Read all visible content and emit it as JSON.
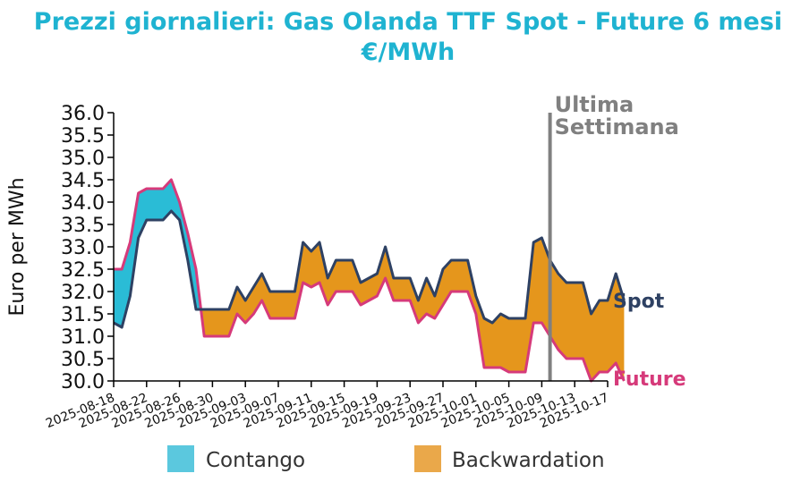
{
  "chart_data": {
    "type": "area",
    "title_line1": "Prezzi giornalieri: Gas Olanda TTF Spot - Future 6 mesi",
    "title_line2": "€/MWh",
    "ylabel": "Euro per MWh",
    "ylim": [
      30.0,
      36.0
    ],
    "y_ticks": [
      "30.0",
      "30.5",
      "31.0",
      "31.5",
      "32.0",
      "32.5",
      "33.0",
      "33.5",
      "34.0",
      "34.5",
      "35.0",
      "35.5",
      "36.0"
    ],
    "x_ticks": [
      "2025-08-18",
      "2025-08-22",
      "2025-08-26",
      "2025-08-30",
      "2025-09-03",
      "2025-09-07",
      "2025-09-11",
      "2025-09-15",
      "2025-09-19",
      "2025-09-23",
      "2025-09-27",
      "2025-10-01",
      "2025-10-05",
      "2025-10-09",
      "2025-10-13",
      "2025-10-17"
    ],
    "x_start": "2025-08-18",
    "x_end": "2025-10-17",
    "last_week_date": "2025-10-10",
    "last_week_label": [
      "Ultima",
      "Settimana"
    ],
    "series": [
      {
        "name": "Spot",
        "color": "#2e4163",
        "points": [
          [
            "2025-08-18",
            31.3
          ],
          [
            "2025-08-19",
            31.2
          ],
          [
            "2025-08-20",
            31.9
          ],
          [
            "2025-08-21",
            33.2
          ],
          [
            "2025-08-22",
            33.6
          ],
          [
            "2025-08-23",
            33.6
          ],
          [
            "2025-08-24",
            33.6
          ],
          [
            "2025-08-25",
            33.8
          ],
          [
            "2025-08-26",
            33.6
          ],
          [
            "2025-08-27",
            32.7
          ],
          [
            "2025-08-28",
            31.6
          ],
          [
            "2025-08-29",
            31.6
          ],
          [
            "2025-08-30",
            31.6
          ],
          [
            "2025-08-31",
            31.6
          ],
          [
            "2025-09-01",
            31.6
          ],
          [
            "2025-09-02",
            32.1
          ],
          [
            "2025-09-03",
            31.8
          ],
          [
            "2025-09-04",
            32.1
          ],
          [
            "2025-09-05",
            32.4
          ],
          [
            "2025-09-06",
            32.0
          ],
          [
            "2025-09-07",
            32.0
          ],
          [
            "2025-09-08",
            32.0
          ],
          [
            "2025-09-09",
            32.0
          ],
          [
            "2025-09-10",
            33.1
          ],
          [
            "2025-09-11",
            32.9
          ],
          [
            "2025-09-12",
            33.1
          ],
          [
            "2025-09-13",
            32.3
          ],
          [
            "2025-09-14",
            32.7
          ],
          [
            "2025-09-15",
            32.7
          ],
          [
            "2025-09-16",
            32.7
          ],
          [
            "2025-09-17",
            32.2
          ],
          [
            "2025-09-18",
            32.3
          ],
          [
            "2025-09-19",
            32.4
          ],
          [
            "2025-09-20",
            33.0
          ],
          [
            "2025-09-21",
            32.3
          ],
          [
            "2025-09-22",
            32.3
          ],
          [
            "2025-09-23",
            32.3
          ],
          [
            "2025-09-24",
            31.8
          ],
          [
            "2025-09-25",
            32.3
          ],
          [
            "2025-09-26",
            31.9
          ],
          [
            "2025-09-27",
            32.5
          ],
          [
            "2025-09-28",
            32.7
          ],
          [
            "2025-09-29",
            32.7
          ],
          [
            "2025-09-30",
            32.7
          ],
          [
            "2025-10-01",
            31.9
          ],
          [
            "2025-10-02",
            31.4
          ],
          [
            "2025-10-03",
            31.3
          ],
          [
            "2025-10-04",
            31.5
          ],
          [
            "2025-10-05",
            31.4
          ],
          [
            "2025-10-06",
            31.4
          ],
          [
            "2025-10-07",
            31.4
          ],
          [
            "2025-10-08",
            33.1
          ],
          [
            "2025-10-09",
            33.2
          ],
          [
            "2025-10-10",
            32.7
          ],
          [
            "2025-10-11",
            32.4
          ],
          [
            "2025-10-12",
            32.2
          ],
          [
            "2025-10-13",
            32.2
          ],
          [
            "2025-10-14",
            32.2
          ],
          [
            "2025-10-15",
            31.5
          ],
          [
            "2025-10-16",
            31.8
          ],
          [
            "2025-10-17",
            31.8
          ],
          [
            "2025-10-18",
            32.4
          ],
          [
            "2025-10-19",
            31.8
          ]
        ]
      },
      {
        "name": "Future",
        "color": "#d63a7a",
        "points": [
          [
            "2025-08-18",
            32.5
          ],
          [
            "2025-08-19",
            32.5
          ],
          [
            "2025-08-20",
            33.1
          ],
          [
            "2025-08-21",
            34.2
          ],
          [
            "2025-08-22",
            34.3
          ],
          [
            "2025-08-23",
            34.3
          ],
          [
            "2025-08-24",
            34.3
          ],
          [
            "2025-08-25",
            34.5
          ],
          [
            "2025-08-26",
            34.0
          ],
          [
            "2025-08-27",
            33.3
          ],
          [
            "2025-08-28",
            32.5
          ],
          [
            "2025-08-29",
            31.0
          ],
          [
            "2025-08-30",
            31.0
          ],
          [
            "2025-08-31",
            31.0
          ],
          [
            "2025-09-01",
            31.0
          ],
          [
            "2025-09-02",
            31.5
          ],
          [
            "2025-09-03",
            31.3
          ],
          [
            "2025-09-04",
            31.5
          ],
          [
            "2025-09-05",
            31.8
          ],
          [
            "2025-09-06",
            31.4
          ],
          [
            "2025-09-07",
            31.4
          ],
          [
            "2025-09-08",
            31.4
          ],
          [
            "2025-09-09",
            31.4
          ],
          [
            "2025-09-10",
            32.2
          ],
          [
            "2025-09-11",
            32.1
          ],
          [
            "2025-09-12",
            32.2
          ],
          [
            "2025-09-13",
            31.7
          ],
          [
            "2025-09-14",
            32.0
          ],
          [
            "2025-09-15",
            32.0
          ],
          [
            "2025-09-16",
            32.0
          ],
          [
            "2025-09-17",
            31.7
          ],
          [
            "2025-09-18",
            31.8
          ],
          [
            "2025-09-19",
            31.9
          ],
          [
            "2025-09-20",
            32.3
          ],
          [
            "2025-09-21",
            31.8
          ],
          [
            "2025-09-22",
            31.8
          ],
          [
            "2025-09-23",
            31.8
          ],
          [
            "2025-09-24",
            31.3
          ],
          [
            "2025-09-25",
            31.5
          ],
          [
            "2025-09-26",
            31.4
          ],
          [
            "2025-09-27",
            31.7
          ],
          [
            "2025-09-28",
            32.0
          ],
          [
            "2025-09-29",
            32.0
          ],
          [
            "2025-09-30",
            32.0
          ],
          [
            "2025-10-01",
            31.5
          ],
          [
            "2025-10-02",
            30.3
          ],
          [
            "2025-10-03",
            30.3
          ],
          [
            "2025-10-04",
            30.3
          ],
          [
            "2025-10-05",
            30.2
          ],
          [
            "2025-10-06",
            30.2
          ],
          [
            "2025-10-07",
            30.2
          ],
          [
            "2025-10-08",
            31.3
          ],
          [
            "2025-10-09",
            31.3
          ],
          [
            "2025-10-10",
            31.0
          ],
          [
            "2025-10-11",
            30.7
          ],
          [
            "2025-10-12",
            30.5
          ],
          [
            "2025-10-13",
            30.5
          ],
          [
            "2025-10-14",
            30.5
          ],
          [
            "2025-10-15",
            30.0
          ],
          [
            "2025-10-16",
            30.2
          ],
          [
            "2025-10-17",
            30.2
          ],
          [
            "2025-10-18",
            30.4
          ],
          [
            "2025-10-19",
            30.0
          ]
        ]
      }
    ],
    "legend": {
      "placement": "bottom",
      "items": [
        {
          "label": "Contango",
          "color": "#5bc8de"
        },
        {
          "label": "Backwardation",
          "color": "#eaa84a"
        }
      ]
    },
    "fill_colors": {
      "contango": "#2abcd6",
      "backwardation": "#e5961c"
    },
    "grid": false
  }
}
